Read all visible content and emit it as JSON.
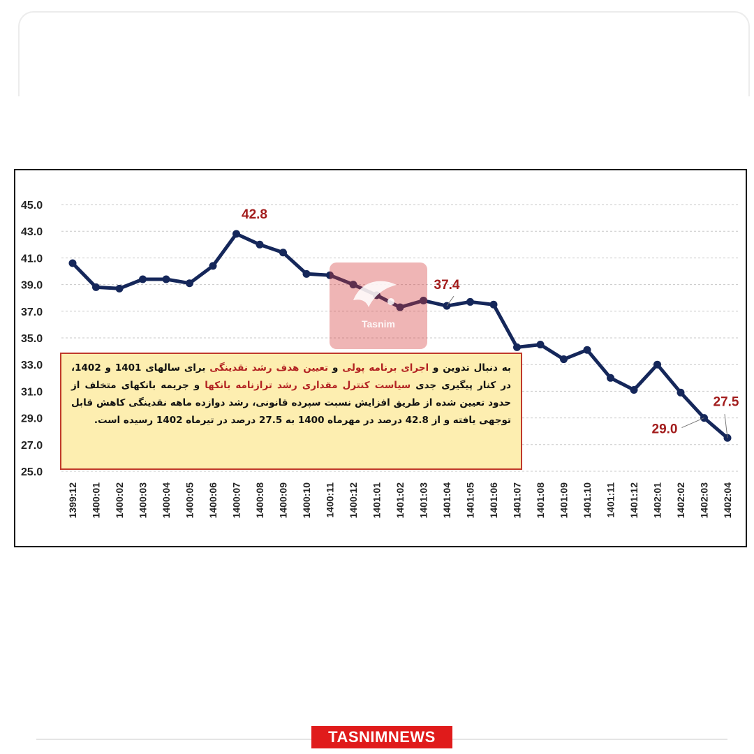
{
  "chart_data": {
    "type": "line",
    "x": [
      "1399:12",
      "1400:01",
      "1400:02",
      "1400:03",
      "1400:04",
      "1400:05",
      "1400:06",
      "1400:07",
      "1400:08",
      "1400:09",
      "1400:10",
      "1400:11",
      "1400:12",
      "1401:01",
      "1401:02",
      "1401:03",
      "1401:04",
      "1401:05",
      "1401:06",
      "1401:07",
      "1401:08",
      "1401:09",
      "1401:10",
      "1401:11",
      "1401:12",
      "1402:01",
      "1402:02",
      "1402:03",
      "1402:04"
    ],
    "values": [
      40.6,
      38.8,
      38.7,
      39.4,
      39.4,
      39.1,
      40.4,
      42.8,
      42.0,
      41.4,
      39.8,
      39.7,
      39.0,
      38.2,
      37.3,
      37.8,
      37.4,
      37.7,
      37.5,
      34.3,
      34.5,
      33.4,
      34.1,
      32.0,
      31.1,
      33.0,
      30.9,
      29.0,
      27.5
    ],
    "y_ticks": [
      "45.0",
      "43.0",
      "41.0",
      "39.0",
      "37.0",
      "35.0",
      "33.0",
      "31.0",
      "29.0",
      "27.0",
      "25.0"
    ],
    "ylim": [
      25,
      45
    ],
    "grid": "horizontal-dashed",
    "line_color": "#15275a",
    "annotation_color": "#a21c1c",
    "annotations": [
      {
        "index": 7,
        "label": "42.8"
      },
      {
        "index": 16,
        "label": "37.4"
      },
      {
        "index": 27,
        "label": "29.0"
      },
      {
        "index": 28,
        "label": "27.5"
      }
    ]
  },
  "callout": {
    "p1": "به دنبال تدوین و ",
    "h1": "اجرای برنامه پولی",
    "p2": " و ",
    "h2": "تعیین هدف رشد نقدینگی",
    "p3": " برای سالهای 1401 و 1402، در کنار پیگیری جدی ",
    "h3": "سیاست کنترل مقداری رشد ترازنامه بانکها",
    "p4": " و جریمه بانکهای متخلف از حدود تعیین شده از طریق افزایش نسبت سپرده قانونی، رشد دوازده ماهه نقدینگی کاهش قابل توجهی یافته و از 42.8 درصد در مهرماه 1400 به 27.5 درصد در تیرماه 1402 رسیده است."
  },
  "watermark": {
    "text": "Tasnim"
  },
  "footer": {
    "brand": "TASNIMNEWS"
  }
}
